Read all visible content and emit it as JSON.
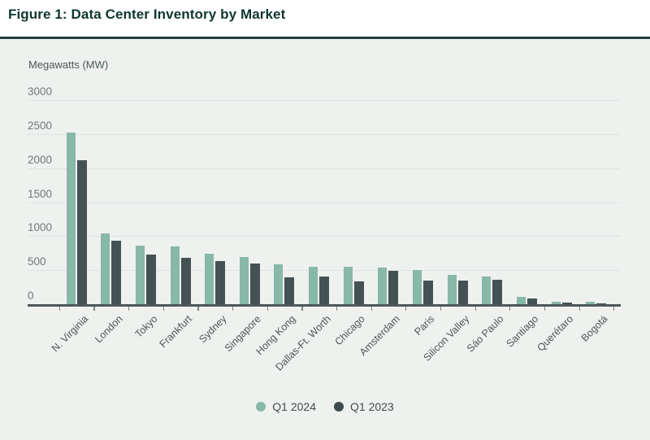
{
  "figure": {
    "title": "Figure 1: Data Center Inventory by Market",
    "unit_label": "Megawatts (MW)"
  },
  "colors": {
    "title": "#0e362f",
    "divider": "#1f3d44",
    "panel_background": "#eff1ef",
    "gridline": "#e0e4e1",
    "axis_line": "#4d585a",
    "series_q1_2024": "#87b8a8",
    "series_q1_2023": "#445254",
    "legend_dot_q1_2023": "#3d4b4d"
  },
  "chart_data": {
    "type": "bar",
    "title": "Figure 1: Data Center Inventory by Market",
    "xlabel": "",
    "ylabel": "Megawatts (MW)",
    "ylim": [
      0,
      3000
    ],
    "ytick_step": 500,
    "grid": true,
    "legend_position": "bottom-center",
    "categories": [
      "N. Virginia",
      "London",
      "Tokyo",
      "Frankfurt",
      "Sydney",
      "Singapore",
      "Hong Kong",
      "Dallas-Ft. Worth",
      "Chicago",
      "Amsterdam",
      "Paris",
      "Silicon Valley",
      "Sáo Paulo",
      "Santiago",
      "Querétaro",
      "Bogotá"
    ],
    "series": [
      {
        "name": "Q1 2024",
        "color": "#87b8a8",
        "values": [
          2520,
          1045,
          865,
          850,
          740,
          690,
          590,
          550,
          545,
          540,
          505,
          435,
          410,
          105,
          35,
          30
        ]
      },
      {
        "name": "Q1 2023",
        "color": "#445254",
        "values": [
          2120,
          935,
          730,
          685,
          630,
          600,
          390,
          410,
          335,
          485,
          350,
          350,
          360,
          80,
          20,
          15
        ]
      }
    ]
  }
}
